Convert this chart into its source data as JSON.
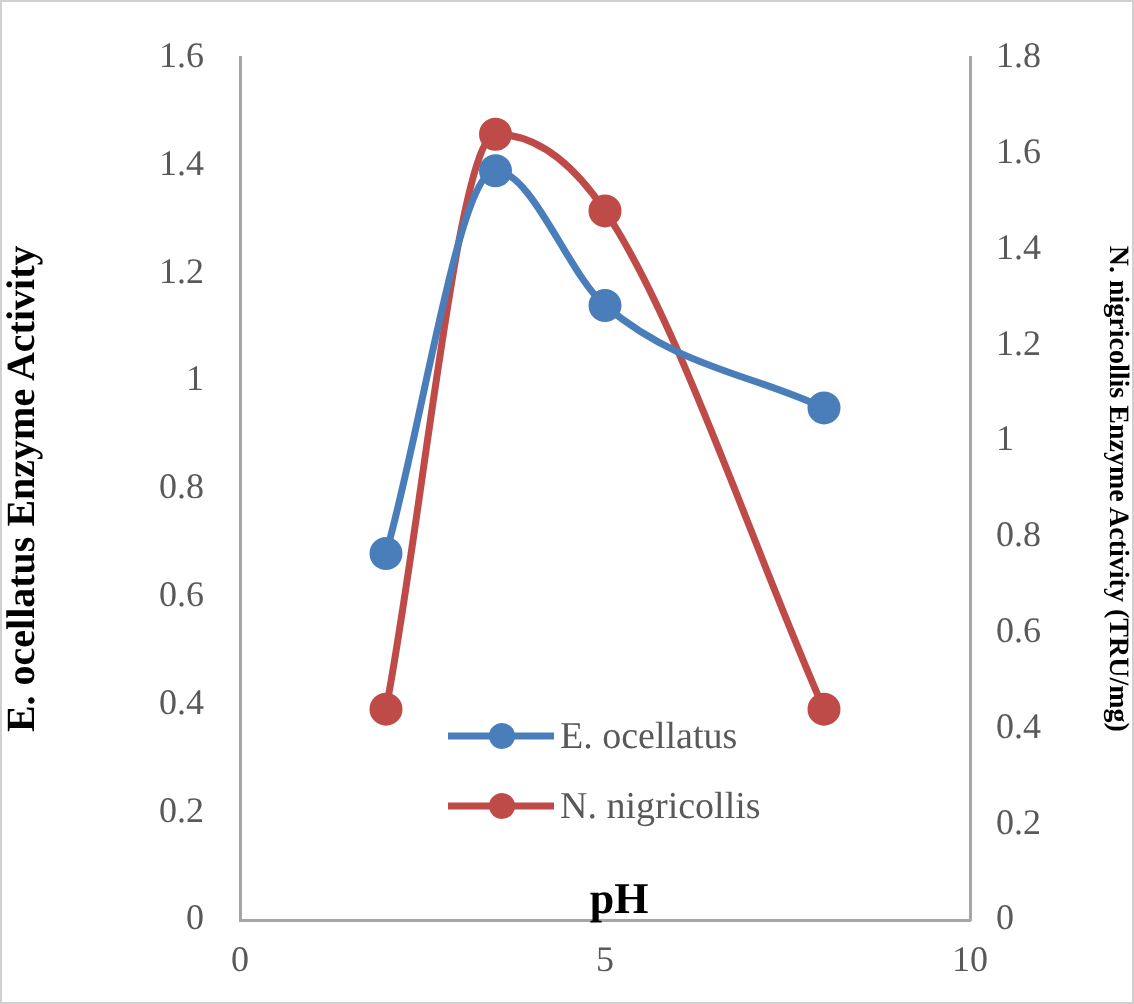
{
  "chart_data": {
    "type": "line",
    "xlabel": "pH",
    "ylabel": "E. ocellatus Enzyme Activity",
    "y2label": "N. nigricollis Enzyme Activity (TRU/mg)",
    "x": [
      2,
      3.5,
      5,
      8
    ],
    "series": [
      {
        "name": "E. ocellatus",
        "color": "#4a7ebb",
        "values": [
          0.68,
          1.39,
          1.14,
          0.95
        ]
      },
      {
        "name": "N. nigricollis",
        "color": "#be4b48",
        "values": [
          0.44,
          1.64,
          1.48,
          0.44
        ],
        "axis": "y2"
      }
    ],
    "xlim": [
      0,
      10
    ],
    "xticks": [
      0,
      5,
      10
    ],
    "ylim": [
      0,
      1.6
    ],
    "yticks": [
      0,
      0.2,
      0.4,
      0.6,
      0.8,
      1,
      1.2,
      1.4,
      1.6
    ],
    "y2lim": [
      0,
      1.8
    ],
    "y2ticks": [
      0,
      0.2,
      0.4,
      0.6,
      0.8,
      1,
      1.2,
      1.4,
      1.6,
      1.8
    ],
    "grid": false,
    "legend": "bottom",
    "marker": "circle",
    "line_style": "solid"
  }
}
